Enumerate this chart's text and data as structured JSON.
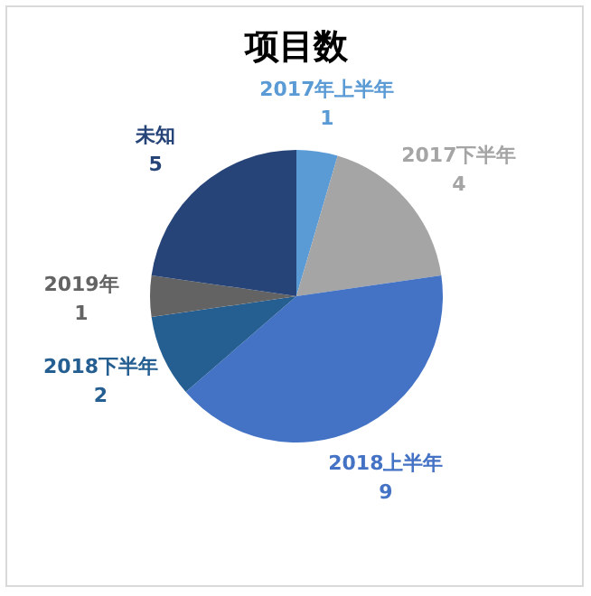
{
  "chart_data": {
    "type": "pie",
    "title": "项目数",
    "categories": [
      "2017年上半年",
      "2017下半年",
      "2018上半年",
      "2018下半年",
      "2019年",
      "未知"
    ],
    "values": [
      1,
      4,
      9,
      2,
      1,
      5
    ],
    "colors": [
      "#5b9bd5",
      "#a5a5a5",
      "#4472c4",
      "#255e91",
      "#636363",
      "#264478"
    ],
    "data_labels": true
  }
}
